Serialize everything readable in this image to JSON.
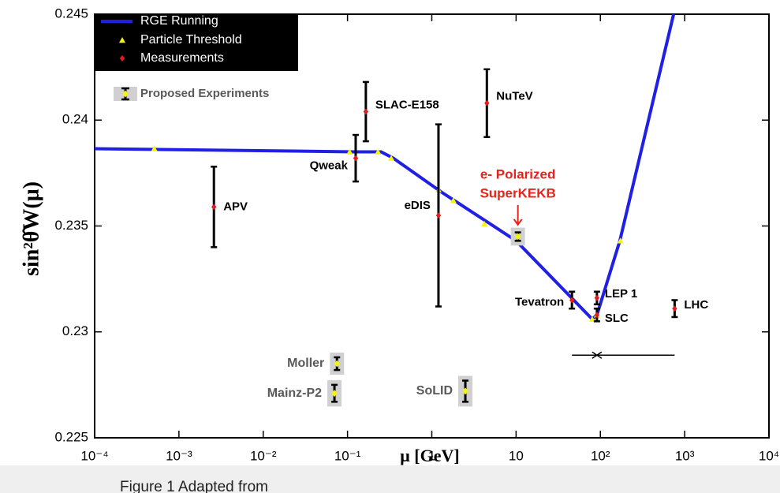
{
  "chart_data": {
    "type": "scatter",
    "xlabel": "μ [GeV]",
    "ylabel": "sin²θ̂W(μ)",
    "xlog": true,
    "xlim": [
      0.0001,
      10000
    ],
    "ylim": [
      0.225,
      0.245
    ],
    "xticks": [
      {
        "value": 0.0001,
        "label": "10⁻⁴"
      },
      {
        "value": 0.001,
        "label": "10⁻³"
      },
      {
        "value": 0.01,
        "label": "10⁻²"
      },
      {
        "value": 0.1,
        "label": "10⁻¹"
      },
      1,
      10,
      {
        "value": 100,
        "label": "10²"
      },
      {
        "value": 1000,
        "label": "10³"
      },
      {
        "value": 10000,
        "label": "10⁴"
      }
    ],
    "yticks": [
      0.225,
      0.23,
      0.235,
      0.24,
      0.245
    ],
    "curve": {
      "name": "RGE Running",
      "color": "#1f1fe6",
      "x": [
        0.0001,
        0.12,
        0.25,
        0.35,
        1.3,
        10,
        80,
        91,
        170,
        740
      ],
      "values": [
        0.23865,
        0.2385,
        0.2385,
        0.2382,
        0.2366,
        0.2343,
        0.2306,
        0.2308,
        0.2343,
        0.245
      ]
    },
    "thresholds": {
      "name": "Particle Threshold",
      "color": "#f5f50a",
      "x": [
        0.00051,
        0.106,
        0.23,
        0.33,
        1.2,
        1.8,
        4.2,
        80,
        91,
        173
      ],
      "values": [
        0.23865,
        0.2385,
        0.2385,
        0.2382,
        0.2367,
        0.2362,
        0.2351,
        0.2306,
        0.2308,
        0.2343
      ]
    },
    "measurements": {
      "name": "Measurements",
      "color": "#e41a1c",
      "labels": [
        "APV",
        "Qweak",
        "SLAC-E158",
        "eDIS",
        "NuTeV",
        "Tevatron",
        "LEP 1",
        "SLC",
        "LHC"
      ],
      "x": [
        0.0026,
        0.125,
        0.165,
        1.2,
        4.5,
        46,
        91,
        91,
        760
      ],
      "values": [
        0.2359,
        0.2382,
        0.2404,
        0.2355,
        0.2408,
        0.2315,
        0.2316,
        0.2308,
        0.2311
      ],
      "errors": [
        0.0019,
        0.0011,
        0.0014,
        0.0043,
        0.0016,
        0.0004,
        0.0003,
        0.0003,
        0.0004
      ]
    },
    "proposed": {
      "name": "Proposed Experiments",
      "color": "#f5f50a",
      "labels": [
        "Moller",
        "Mainz-P2",
        "SoLID",
        null
      ],
      "x": [
        0.075,
        0.07,
        2.5,
        10.5
      ],
      "values": [
        0.2285,
        0.2271,
        0.2272,
        0.2345
      ],
      "errors": [
        0.0003,
        0.0004,
        0.0005,
        0.0002
      ]
    },
    "annotation": {
      "lines": [
        "e- Polarized",
        "SuperKEKB"
      ],
      "color": "#e8231b"
    },
    "range_bar": {
      "x": [
        46,
        760
      ],
      "center": 91,
      "y": 0.2289
    },
    "footer": "Figure 1 Adapted from"
  }
}
